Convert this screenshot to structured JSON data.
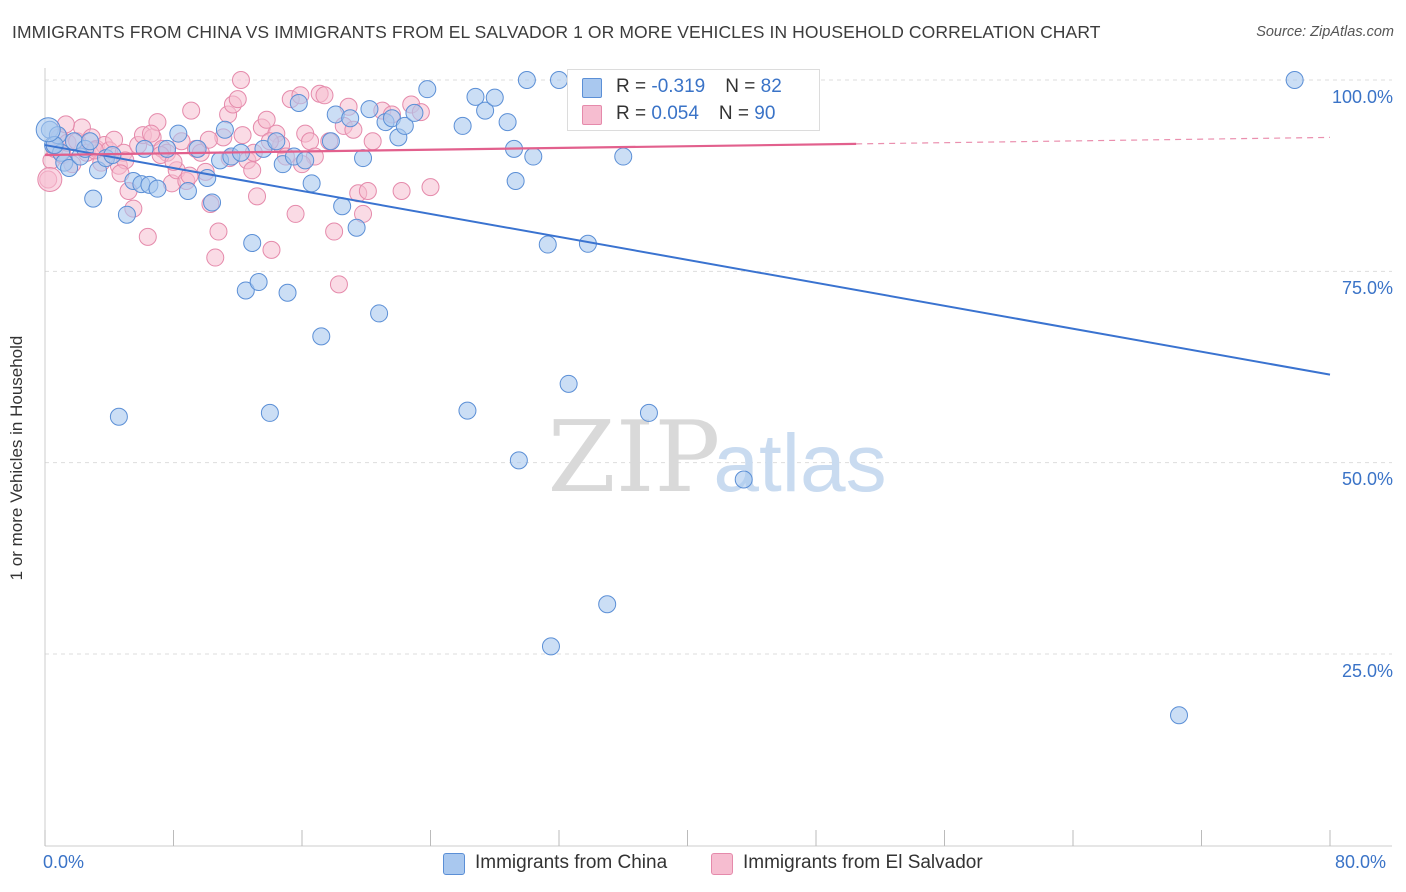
{
  "title": "IMMIGRANTS FROM CHINA VS IMMIGRANTS FROM EL SALVADOR 1 OR MORE VEHICLES IN HOUSEHOLD CORRELATION CHART",
  "source": "Source: ZipAtlas.com",
  "watermark": {
    "zip": "ZIP",
    "atlas": "atlas"
  },
  "legend_box": {
    "china": {
      "r_label": "R = ",
      "r_value": "-0.319",
      "n_label": "N = ",
      "n_value": "82"
    },
    "elsalvador": {
      "r_label": "R = ",
      "r_value": "0.054",
      "n_label": "N = ",
      "n_value": "90"
    }
  },
  "colors": {
    "china_fill": "#a9c8ef",
    "china_stroke": "#5b8fd6",
    "china_line": "#3a73d0",
    "elsalvador_fill": "#f6bdd0",
    "elsalvador_stroke": "#e58aab",
    "elsalvador_line": "#e2608d",
    "grid": "#dddddd",
    "tick_text": "#3a73c7"
  },
  "chart_data": {
    "type": "scatter",
    "title": "IMMIGRANTS FROM CHINA VS IMMIGRANTS FROM EL SALVADOR 1 OR MORE VEHICLES IN HOUSEHOLD CORRELATION CHART",
    "xlabel": "",
    "ylabel": "1 or more Vehicles in Household",
    "xlim": [
      0,
      80
    ],
    "ylim": [
      0,
      103
    ],
    "x_tick_labels": [
      "0.0%",
      "80.0%"
    ],
    "y_tick_labels": [
      "100.0%",
      "75.0%",
      "50.0%",
      "25.0%"
    ],
    "y_ticks": [
      100,
      75,
      50,
      25
    ],
    "legend_position": "bottom",
    "series": [
      {
        "name": "Immigrants from China",
        "r": -0.319,
        "n": 82,
        "trend": {
          "x": [
            0,
            80
          ],
          "y": [
            91.5,
            61.5
          ],
          "dashed_from": null
        },
        "points": [
          [
            0.3,
            93.5
          ],
          [
            0.5,
            91.5
          ],
          [
            0.8,
            92.8
          ],
          [
            1.0,
            90.5
          ],
          [
            1.2,
            89.2
          ],
          [
            1.5,
            88.5
          ],
          [
            1.8,
            92.0
          ],
          [
            2.2,
            90.0
          ],
          [
            2.5,
            91.0
          ],
          [
            3.0,
            84.5
          ],
          [
            3.3,
            88.2
          ],
          [
            3.8,
            89.8
          ],
          [
            4.2,
            90.2
          ],
          [
            4.6,
            56.0
          ],
          [
            5.1,
            82.4
          ],
          [
            5.5,
            86.8
          ],
          [
            6.0,
            86.4
          ],
          [
            6.5,
            86.3
          ],
          [
            7.0,
            85.8
          ],
          [
            7.6,
            91.0
          ],
          [
            8.3,
            93.0
          ],
          [
            8.9,
            85.5
          ],
          [
            9.5,
            91.0
          ],
          [
            10.1,
            87.2
          ],
          [
            10.4,
            84.0
          ],
          [
            10.9,
            89.5
          ],
          [
            11.2,
            93.5
          ],
          [
            11.6,
            90.0
          ],
          [
            12.2,
            90.5
          ],
          [
            12.5,
            72.5
          ],
          [
            12.9,
            78.7
          ],
          [
            13.3,
            73.6
          ],
          [
            13.6,
            91.0
          ],
          [
            14.0,
            56.5
          ],
          [
            14.4,
            92.0
          ],
          [
            14.8,
            89.0
          ],
          [
            15.1,
            72.2
          ],
          [
            15.5,
            90.0
          ],
          [
            15.8,
            97.0
          ],
          [
            16.2,
            89.5
          ],
          [
            16.6,
            86.5
          ],
          [
            17.2,
            66.5
          ],
          [
            17.8,
            92.0
          ],
          [
            18.1,
            95.5
          ],
          [
            18.5,
            83.5
          ],
          [
            19.0,
            95.0
          ],
          [
            19.4,
            80.7
          ],
          [
            19.8,
            89.8
          ],
          [
            20.2,
            96.2
          ],
          [
            20.8,
            69.5
          ],
          [
            21.2,
            94.5
          ],
          [
            21.6,
            95.0
          ],
          [
            22.0,
            92.5
          ],
          [
            22.4,
            94.0
          ],
          [
            23.0,
            95.7
          ],
          [
            23.8,
            98.8
          ],
          [
            26.0,
            94.0
          ],
          [
            26.3,
            56.8
          ],
          [
            26.8,
            97.8
          ],
          [
            27.4,
            96.0
          ],
          [
            28.0,
            97.7
          ],
          [
            28.8,
            94.5
          ],
          [
            29.2,
            91.0
          ],
          [
            29.3,
            86.8
          ],
          [
            29.5,
            50.3
          ],
          [
            30.0,
            100.0
          ],
          [
            30.4,
            90.0
          ],
          [
            31.3,
            78.5
          ],
          [
            31.5,
            26.0
          ],
          [
            32.0,
            100.0
          ],
          [
            32.6,
            60.3
          ],
          [
            33.8,
            78.6
          ],
          [
            34.0,
            100.0
          ],
          [
            35.0,
            31.5
          ],
          [
            36.0,
            90.0
          ],
          [
            37.6,
            56.5
          ],
          [
            43.5,
            47.8
          ],
          [
            70.6,
            17.0
          ],
          [
            77.8,
            100.0
          ],
          [
            0.6,
            91.5
          ],
          [
            2.8,
            92.0
          ],
          [
            6.2,
            91.0
          ]
        ]
      },
      {
        "name": "Immigrants from El Salvador",
        "r": 0.054,
        "n": 90,
        "trend": {
          "x": [
            0,
            80
          ],
          "y": [
            90.2,
            92.5
          ],
          "dashed_from": 50.5
        },
        "points": [
          [
            0.2,
            87.0
          ],
          [
            0.4,
            89.5
          ],
          [
            0.6,
            91.0
          ],
          [
            0.9,
            92.5
          ],
          [
            1.1,
            90.2
          ],
          [
            1.4,
            91.8
          ],
          [
            1.7,
            89.0
          ],
          [
            2.0,
            92.0
          ],
          [
            2.3,
            93.8
          ],
          [
            2.6,
            90.5
          ],
          [
            2.9,
            92.5
          ],
          [
            3.2,
            91.0
          ],
          [
            3.5,
            89.2
          ],
          [
            3.7,
            91.5
          ],
          [
            4.0,
            90.8
          ],
          [
            4.3,
            92.2
          ],
          [
            4.6,
            88.8
          ],
          [
            4.9,
            90.5
          ],
          [
            5.2,
            85.5
          ],
          [
            5.5,
            83.2
          ],
          [
            5.8,
            91.5
          ],
          [
            6.1,
            92.8
          ],
          [
            6.4,
            79.5
          ],
          [
            6.7,
            92.5
          ],
          [
            7.0,
            94.5
          ],
          [
            7.3,
            91.0
          ],
          [
            7.6,
            90.5
          ],
          [
            7.9,
            86.5
          ],
          [
            8.2,
            88.2
          ],
          [
            8.5,
            92.0
          ],
          [
            8.8,
            86.8
          ],
          [
            9.1,
            96.0
          ],
          [
            9.4,
            91.0
          ],
          [
            9.7,
            90.5
          ],
          [
            10.0,
            88.0
          ],
          [
            10.3,
            83.8
          ],
          [
            10.6,
            76.8
          ],
          [
            10.8,
            80.2
          ],
          [
            11.1,
            92.5
          ],
          [
            11.4,
            95.5
          ],
          [
            11.7,
            96.8
          ],
          [
            12.0,
            97.5
          ],
          [
            12.3,
            92.8
          ],
          [
            12.6,
            89.5
          ],
          [
            12.9,
            88.2
          ],
          [
            13.2,
            84.8
          ],
          [
            13.5,
            93.8
          ],
          [
            13.8,
            94.8
          ],
          [
            14.1,
            77.8
          ],
          [
            14.4,
            93.0
          ],
          [
            14.7,
            91.5
          ],
          [
            15.0,
            90.0
          ],
          [
            15.3,
            97.5
          ],
          [
            15.6,
            82.5
          ],
          [
            15.9,
            98.0
          ],
          [
            16.2,
            93.0
          ],
          [
            16.5,
            92.0
          ],
          [
            16.8,
            90.0
          ],
          [
            17.1,
            98.2
          ],
          [
            17.4,
            98.0
          ],
          [
            17.7,
            92.0
          ],
          [
            18.0,
            80.2
          ],
          [
            18.3,
            73.3
          ],
          [
            18.6,
            94.0
          ],
          [
            18.9,
            96.5
          ],
          [
            19.2,
            93.5
          ],
          [
            19.5,
            85.2
          ],
          [
            19.8,
            82.5
          ],
          [
            20.1,
            85.5
          ],
          [
            20.4,
            92.0
          ],
          [
            21.0,
            96.0
          ],
          [
            21.6,
            95.5
          ],
          [
            22.2,
            85.5
          ],
          [
            22.8,
            96.8
          ],
          [
            23.4,
            95.8
          ],
          [
            24.0,
            86.0
          ],
          [
            12.2,
            100.0
          ],
          [
            7.2,
            90.2
          ],
          [
            3.1,
            90.8
          ],
          [
            1.3,
            94.2
          ],
          [
            5.0,
            89.5
          ],
          [
            9.0,
            87.5
          ],
          [
            11.5,
            89.8
          ],
          [
            14.0,
            92.0
          ],
          [
            16.0,
            89.0
          ],
          [
            6.6,
            93.0
          ],
          [
            8.0,
            89.3
          ],
          [
            10.2,
            92.2
          ],
          [
            13.0,
            90.5
          ],
          [
            4.7,
            87.8
          ]
        ]
      }
    ]
  },
  "bottom_legend": [
    "Immigrants from China",
    "Immigrants from El Salvador"
  ]
}
